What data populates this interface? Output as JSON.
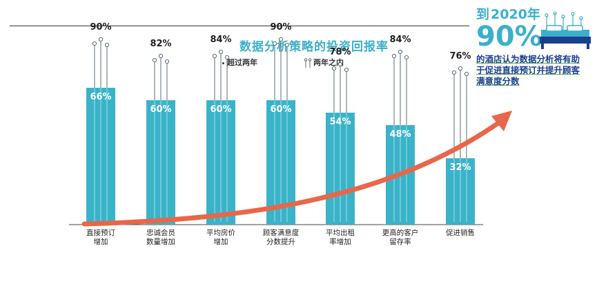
{
  "chart_data": {
    "type": "bar",
    "title": "数据分析策略的投资回报率",
    "legend": [
      "超过两年",
      "两年之内"
    ],
    "categories": [
      "直接预订\n增加",
      "忠诚会员\n数量增加",
      "平均房价\n增加",
      "顾客满意度\n分数提升",
      "平均出租\n率增加",
      "更高的客户\n留存率",
      "促进销售"
    ],
    "series": [
      {
        "name": "超过两年",
        "values": [
          90,
          82,
          84,
          90,
          78,
          84,
          76
        ]
      },
      {
        "name": "两年之内",
        "values": [
          66,
          60,
          60,
          60,
          54,
          48,
          32
        ]
      }
    ],
    "value_labels_outer": [
      "90%",
      "82%",
      "84%",
      "90%",
      "78%",
      "84%",
      "76%"
    ],
    "value_labels_inner": [
      "66%",
      "60%",
      "60%",
      "60%",
      "54%",
      "48%",
      "32%"
    ],
    "ylim": [
      0,
      100
    ],
    "colors": {
      "bar": "#3ab3c9",
      "arrow": "#e8674a",
      "title": "#3bb0c9",
      "callout_text": "#1b3f8f",
      "underline": "#57b947"
    }
  },
  "callout": {
    "prefix": "到",
    "year": "2020年",
    "percent": "90%",
    "text": "的酒店认为数据分析将有助于促进直接预订并提升顾客满意度分数",
    "icon": "bed-icon"
  }
}
